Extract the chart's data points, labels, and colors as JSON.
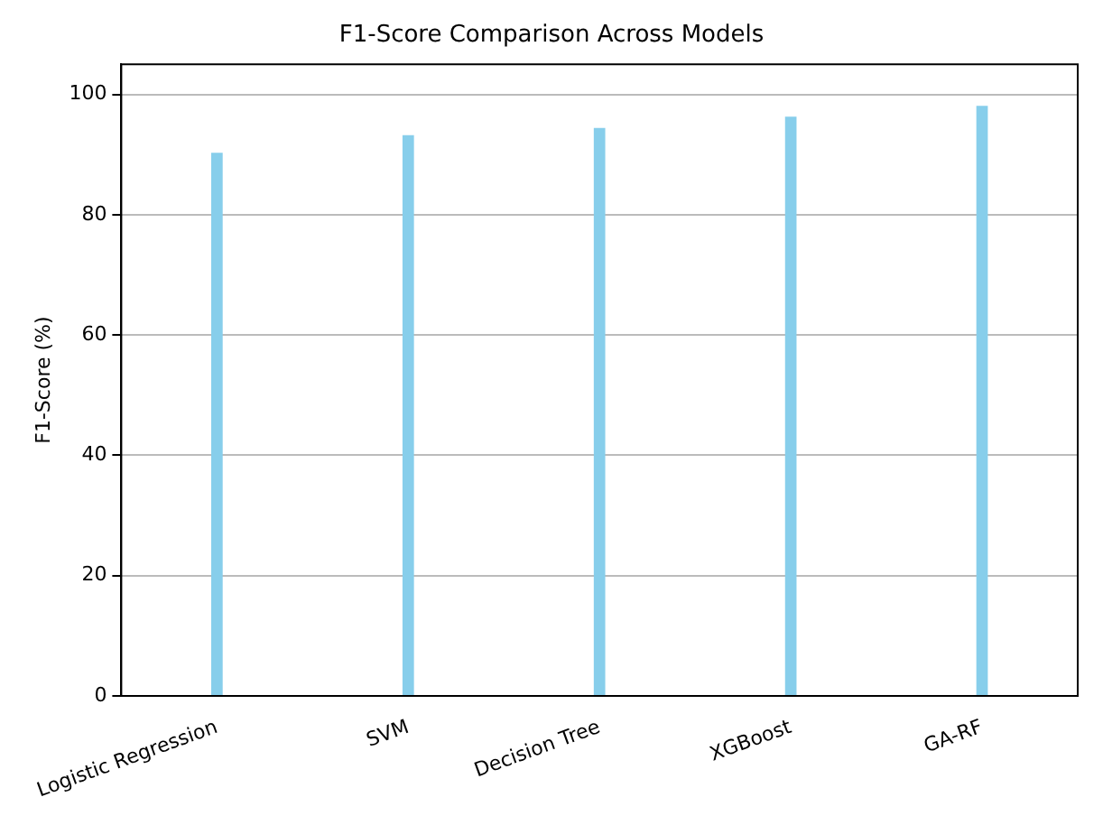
{
  "chart_data": {
    "type": "bar",
    "title": "F1-Score Comparison Across Models",
    "ylabel": "F1-Score (%)",
    "categories": [
      "Logistic Regression",
      "SVM",
      "Decision Tree",
      "XGBoost",
      "GA-RF"
    ],
    "values": [
      90.3,
      93.2,
      94.4,
      96.3,
      98.1
    ],
    "color": "#87ceeb",
    "ylim": [
      0,
      105
    ],
    "yticks": [
      0,
      20,
      40,
      60,
      80,
      100
    ],
    "grid": "y"
  }
}
